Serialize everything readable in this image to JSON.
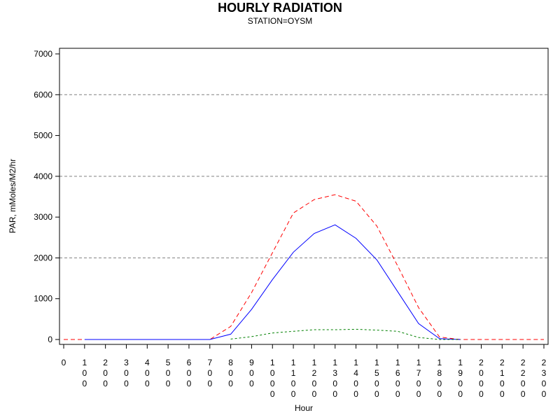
{
  "chart_data": {
    "type": "line",
    "title": "HOURLY RADIATION",
    "subtitle": "STATION=OYSM",
    "xlabel": "Hour",
    "ylabel": "PAR, mMoles/M2/hr",
    "xlim": [
      0,
      2300
    ],
    "ylim": [
      0,
      7000
    ],
    "y_ticks": [
      0,
      1000,
      2000,
      3000,
      4000,
      5000,
      6000,
      7000
    ],
    "x_ticks": [
      0,
      100,
      200,
      300,
      400,
      500,
      600,
      700,
      800,
      900,
      1000,
      1100,
      1200,
      1300,
      1400,
      1500,
      1600,
      1700,
      1800,
      1900,
      2000,
      2100,
      2200,
      2300
    ],
    "y_gridlines": [
      2000,
      4000,
      6000
    ],
    "legend": "none",
    "series": [
      {
        "color": "#ff0000",
        "style": "dashed",
        "x": [
          0,
          100,
          200,
          300,
          400,
          500,
          600,
          700,
          800,
          900,
          1000,
          1100,
          1200,
          1300,
          1400,
          1500,
          1600,
          1700,
          1800,
          1900,
          2000,
          2100,
          2200,
          2300
        ],
        "values": [
          0,
          0,
          0,
          0,
          0,
          0,
          0,
          0,
          320,
          1150,
          2130,
          3100,
          3430,
          3550,
          3390,
          2780,
          1800,
          780,
          60,
          0,
          0,
          0,
          0,
          0
        ]
      },
      {
        "color": "#0000ff",
        "style": "solid",
        "x": [
          100,
          200,
          300,
          400,
          500,
          600,
          700,
          800,
          900,
          1000,
          1100,
          1200,
          1300,
          1400,
          1500,
          1600,
          1700,
          1800,
          1900
        ],
        "values": [
          0,
          0,
          0,
          0,
          0,
          0,
          0,
          130,
          740,
          1470,
          2140,
          2600,
          2810,
          2480,
          1950,
          1170,
          390,
          20,
          0
        ]
      },
      {
        "color": "#008000",
        "style": "dotted",
        "x": [
          800,
          900,
          1000,
          1100,
          1200,
          1300,
          1400,
          1500,
          1600,
          1700,
          1800,
          1900
        ],
        "values": [
          10,
          70,
          160,
          200,
          240,
          240,
          250,
          230,
          200,
          50,
          0,
          0
        ]
      }
    ]
  }
}
